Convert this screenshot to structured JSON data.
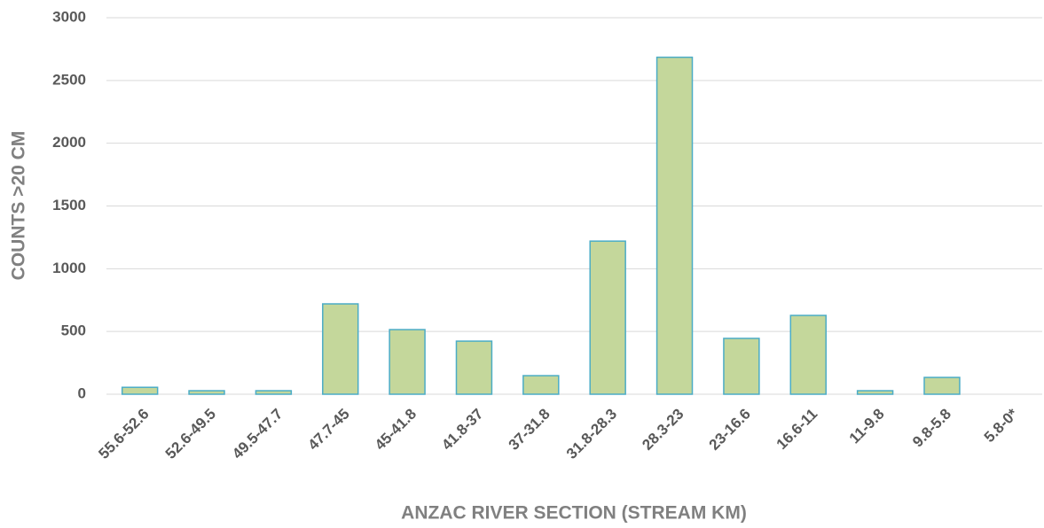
{
  "chart_data": {
    "type": "bar",
    "x_label": "ANZAC RIVER SECTION (STREAM KM)",
    "y_label": "COUNTS >20 CM",
    "categories": [
      "55.6-52.6",
      "52.6-49.5",
      "49.5-47.7",
      "47.7-45",
      "45-41.8",
      "41.8-37",
      "37-31.8",
      "31.8-28.3",
      "28.3-23",
      "23-16.6",
      "16.6-11",
      "11-9.8",
      "9.8-5.8",
      "5.8-0*"
    ],
    "values": [
      55,
      28,
      28,
      720,
      515,
      423,
      148,
      1220,
      2685,
      445,
      628,
      28,
      134,
      0
    ],
    "color": "#c4d79b",
    "edge_color": "#4bacc6",
    "ylim": [
      0,
      3000
    ],
    "yticks": [
      0,
      500,
      1000,
      1500,
      2000,
      2500,
      3000
    ],
    "grid": true
  }
}
